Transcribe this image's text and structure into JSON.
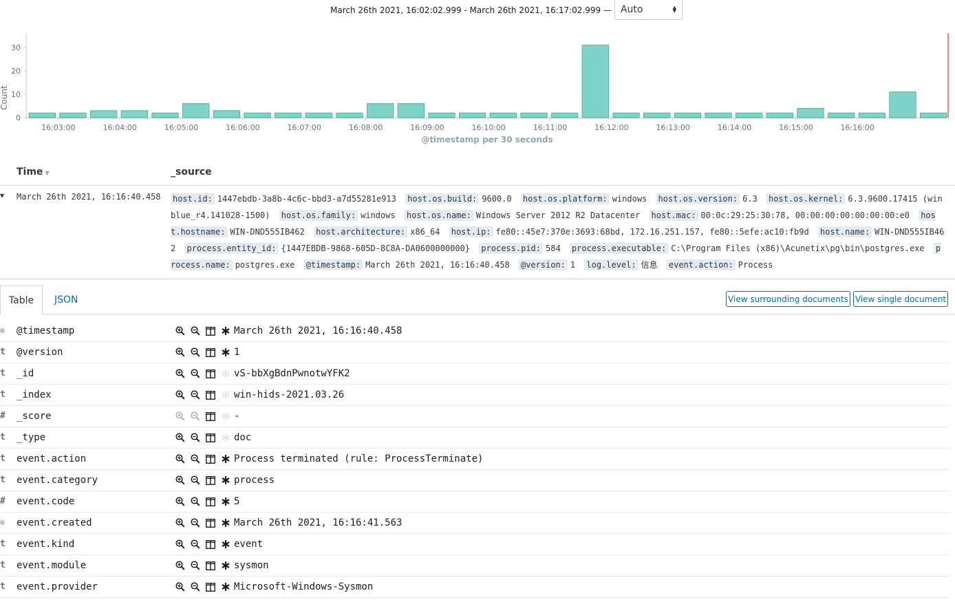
{
  "header": {
    "time_range": "March 26th 2021, 16:02:02.999 - March 26th 2021, 16:17:02.999 —",
    "interval_selected": "Auto"
  },
  "chart_data": {
    "type": "bar",
    "xlabel": "@timestamp per 30 seconds",
    "ylabel": "Count",
    "ylim": [
      0,
      35
    ],
    "y_ticks": [
      0,
      10,
      20,
      30
    ],
    "x_tick_labels": [
      "16:03:00",
      "16:04:00",
      "16:05:00",
      "16:06:00",
      "16:07:00",
      "16:08:00",
      "16:09:00",
      "16:10:00",
      "16:11:00",
      "16:12:00",
      "16:13:00",
      "16:14:00",
      "16:15:00",
      "16:16:00"
    ],
    "bar_color": "#80d3c8",
    "bar_stroke": "#54b399",
    "values": [
      2,
      2,
      3,
      3,
      2,
      6,
      3,
      2,
      2,
      2,
      2,
      6,
      6,
      2,
      2,
      2,
      2,
      2,
      31,
      2,
      2,
      2,
      2,
      2,
      2,
      4,
      2,
      2,
      11,
      2
    ],
    "grid": false
  },
  "table": {
    "col_time": "Time",
    "col_source": "_source"
  },
  "document": {
    "time": "March 26th 2021, 16:16:40.458",
    "source": [
      {
        "k": "host.id:",
        "v": "1447ebdb-3a8b-4c6c-bbd3-a7d55281e913"
      },
      {
        "k": "host.os.build:",
        "v": "9600.0"
      },
      {
        "k": "host.os.platform:",
        "v": "windows"
      },
      {
        "k": "host.os.version:",
        "v": "6.3"
      },
      {
        "k": "host.os.kernel:",
        "v": "6.3.9600.17415 (winblue_r4.141028-1500)"
      },
      {
        "k": "host.os.family:",
        "v": "windows"
      },
      {
        "k": "host.os.name:",
        "v": "Windows Server 2012 R2 Datacenter"
      },
      {
        "k": "host.mac:",
        "v": "00:0c:29:25:30:78, 00:00:00:00:00:00:00:e0"
      },
      {
        "k": "host.hostname:",
        "v": "WIN-DND555IB462"
      },
      {
        "k": "host.architecture:",
        "v": "x86_64"
      },
      {
        "k": "host.ip:",
        "v": "fe80::45e7:370e:3693:68bd, 172.16.251.157, fe80::5efe:ac10:fb9d"
      },
      {
        "k": "host.name:",
        "v": "WIN-DND555IB462"
      },
      {
        "k": "process.entity_id:",
        "v": "{1447EBDB-9868-605D-8C8A-DA0600000000}"
      },
      {
        "k": "process.pid:",
        "v": "584"
      },
      {
        "k": "process.executable:",
        "v": "C:\\Program Files (x86)\\Acunetix\\pg\\bin\\postgres.exe"
      },
      {
        "k": "process.name:",
        "v": "postgres.exe"
      },
      {
        "k": "@timestamp:",
        "v": "March 26th 2021, 16:16:40.458"
      },
      {
        "k": "@version:",
        "v": "1"
      },
      {
        "k": "log.level:",
        "v": "信息"
      },
      {
        "k": "event.action:",
        "v": "Process"
      }
    ]
  },
  "tabs": {
    "table": "Table",
    "json": "JSON",
    "view_surrounding": "View surrounding documents",
    "view_single": "View single document"
  },
  "fields": [
    {
      "type": "clock",
      "type_glyph": "⊙",
      "name": "@timestamp",
      "value": "March 26th 2021, 16:16:40.458",
      "filterable": true,
      "exists_active": true
    },
    {
      "type": "string",
      "type_glyph": "t",
      "name": "@version",
      "value": "1",
      "filterable": true,
      "exists_active": true
    },
    {
      "type": "string",
      "type_glyph": "t",
      "name": "_id",
      "value": "vS-bbXgBdnPwnotwYFK2",
      "filterable": true,
      "exists_active": false
    },
    {
      "type": "string",
      "type_glyph": "t",
      "name": "_index",
      "value": "win-hids-2021.03.26",
      "filterable": true,
      "exists_active": false
    },
    {
      "type": "number",
      "type_glyph": "#",
      "name": "_score",
      "value": " -",
      "filterable": false,
      "exists_active": false
    },
    {
      "type": "string",
      "type_glyph": "t",
      "name": "_type",
      "value": "doc",
      "filterable": true,
      "exists_active": false
    },
    {
      "type": "string",
      "type_glyph": "t",
      "name": "event.action",
      "value": "Process terminated (rule: ProcessTerminate)",
      "filterable": true,
      "exists_active": true
    },
    {
      "type": "string",
      "type_glyph": "t",
      "name": "event.category",
      "value": "process",
      "filterable": true,
      "exists_active": true
    },
    {
      "type": "number",
      "type_glyph": "#",
      "name": "event.code",
      "value": "5",
      "filterable": true,
      "exists_active": true
    },
    {
      "type": "clock",
      "type_glyph": "⊙",
      "name": "event.created",
      "value": "March 26th 2021, 16:16:41.563",
      "filterable": true,
      "exists_active": true
    },
    {
      "type": "string",
      "type_glyph": "t",
      "name": "event.kind",
      "value": "event",
      "filterable": true,
      "exists_active": true
    },
    {
      "type": "string",
      "type_glyph": "t",
      "name": "event.module",
      "value": "sysmon",
      "filterable": true,
      "exists_active": true
    },
    {
      "type": "string",
      "type_glyph": "t",
      "name": "event.provider",
      "value": "Microsoft-Windows-Sysmon",
      "filterable": true,
      "exists_active": true
    }
  ]
}
